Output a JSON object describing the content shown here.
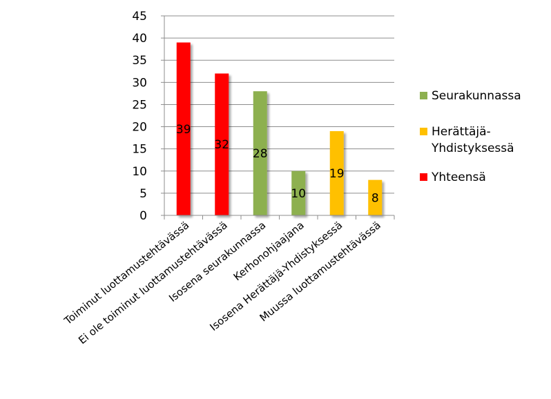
{
  "chart_data": {
    "type": "bar",
    "title": "",
    "xlabel": "",
    "ylabel": "",
    "ylim": [
      0,
      45
    ],
    "yticks": [
      0,
      5,
      10,
      15,
      20,
      25,
      30,
      35,
      40,
      45
    ],
    "grid": true,
    "legend_position": "right",
    "categories": [
      "Toiminut luottamustehtävässä",
      "Ei ole toiminut luottamustehtävässä",
      "Isosena seurakunnassa",
      "Kerhonohjaajana",
      "Isosena Herättäjä-Yhdistyksessä",
      "Muussa luottamustehtävässä"
    ],
    "values": [
      39,
      32,
      28,
      10,
      19,
      8
    ],
    "data_labels": [
      "39",
      "32",
      "28",
      "10",
      "19",
      "8"
    ],
    "bar_series": [
      "Yhteensä",
      "Yhteensä",
      "Seurakunnassa",
      "Seurakunnassa",
      "Herättäjä-Yhdistyksessä",
      "Herättäjä-Yhdistyksessä"
    ],
    "series": [
      {
        "name": "Seurakunnassa",
        "color": "#8db050",
        "legend_lines": [
          "Seurakunnassa"
        ]
      },
      {
        "name": "Herättäjä-Yhdistyksessä",
        "color": "#ffc000",
        "legend_lines": [
          "Herättäjä-",
          "Yhdistyksessä"
        ]
      },
      {
        "name": "Yhteensä",
        "color": "#ff0000",
        "legend_lines": [
          "Yhteensä"
        ]
      }
    ]
  }
}
